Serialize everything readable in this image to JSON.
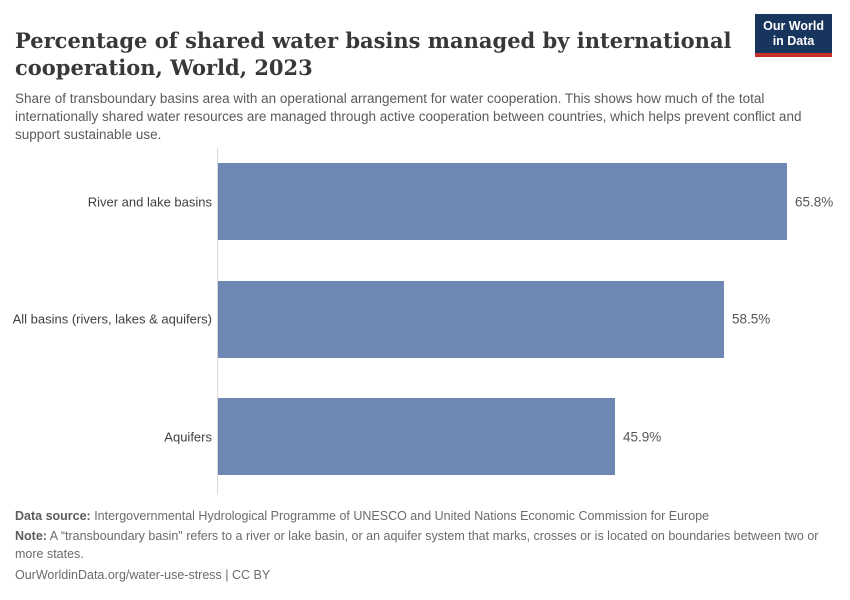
{
  "header": {
    "title": "Percentage of shared water basins managed by international cooperation, World, 2023",
    "subtitle": "Share of transboundary basins area with an operational arrangement for water cooperation. This shows how much of the total internationally shared water resources are managed through active cooperation between countries, which helps prevent conflict and support sustainable use.",
    "logo": {
      "line1": "Our World",
      "line2": "in Data",
      "bg_color": "#18355e",
      "accent_color": "#c9302b"
    }
  },
  "chart_data": {
    "type": "bar",
    "orientation": "horizontal",
    "title": "Percentage of shared water basins managed by international cooperation, World, 2023",
    "categories": [
      "River and lake basins",
      "All basins (rivers, lakes & aquifers)",
      "Aquifers"
    ],
    "values": [
      65.8,
      58.5,
      45.9
    ],
    "value_labels": [
      "65.8%",
      "58.5%",
      "45.9%"
    ],
    "unit": "%",
    "xlim": [
      0,
      65.8
    ],
    "bar_color": "#6f88b3",
    "axis_line_color": "#dadada",
    "grid": false,
    "legend": "none"
  },
  "footer": {
    "datasource_label": "Data source:",
    "datasource_text": " Intergovernmental Hydrological Programme of UNESCO and United Nations Economic Commission for Europe",
    "note_label": "Note:",
    "note_text": " A “transboundary basin\" refers to a river or lake basin, or an aquifer system that marks, crosses or is located on boundaries between two or more states.",
    "citation": "OurWorldinData.org/water-use-stress | CC BY"
  }
}
